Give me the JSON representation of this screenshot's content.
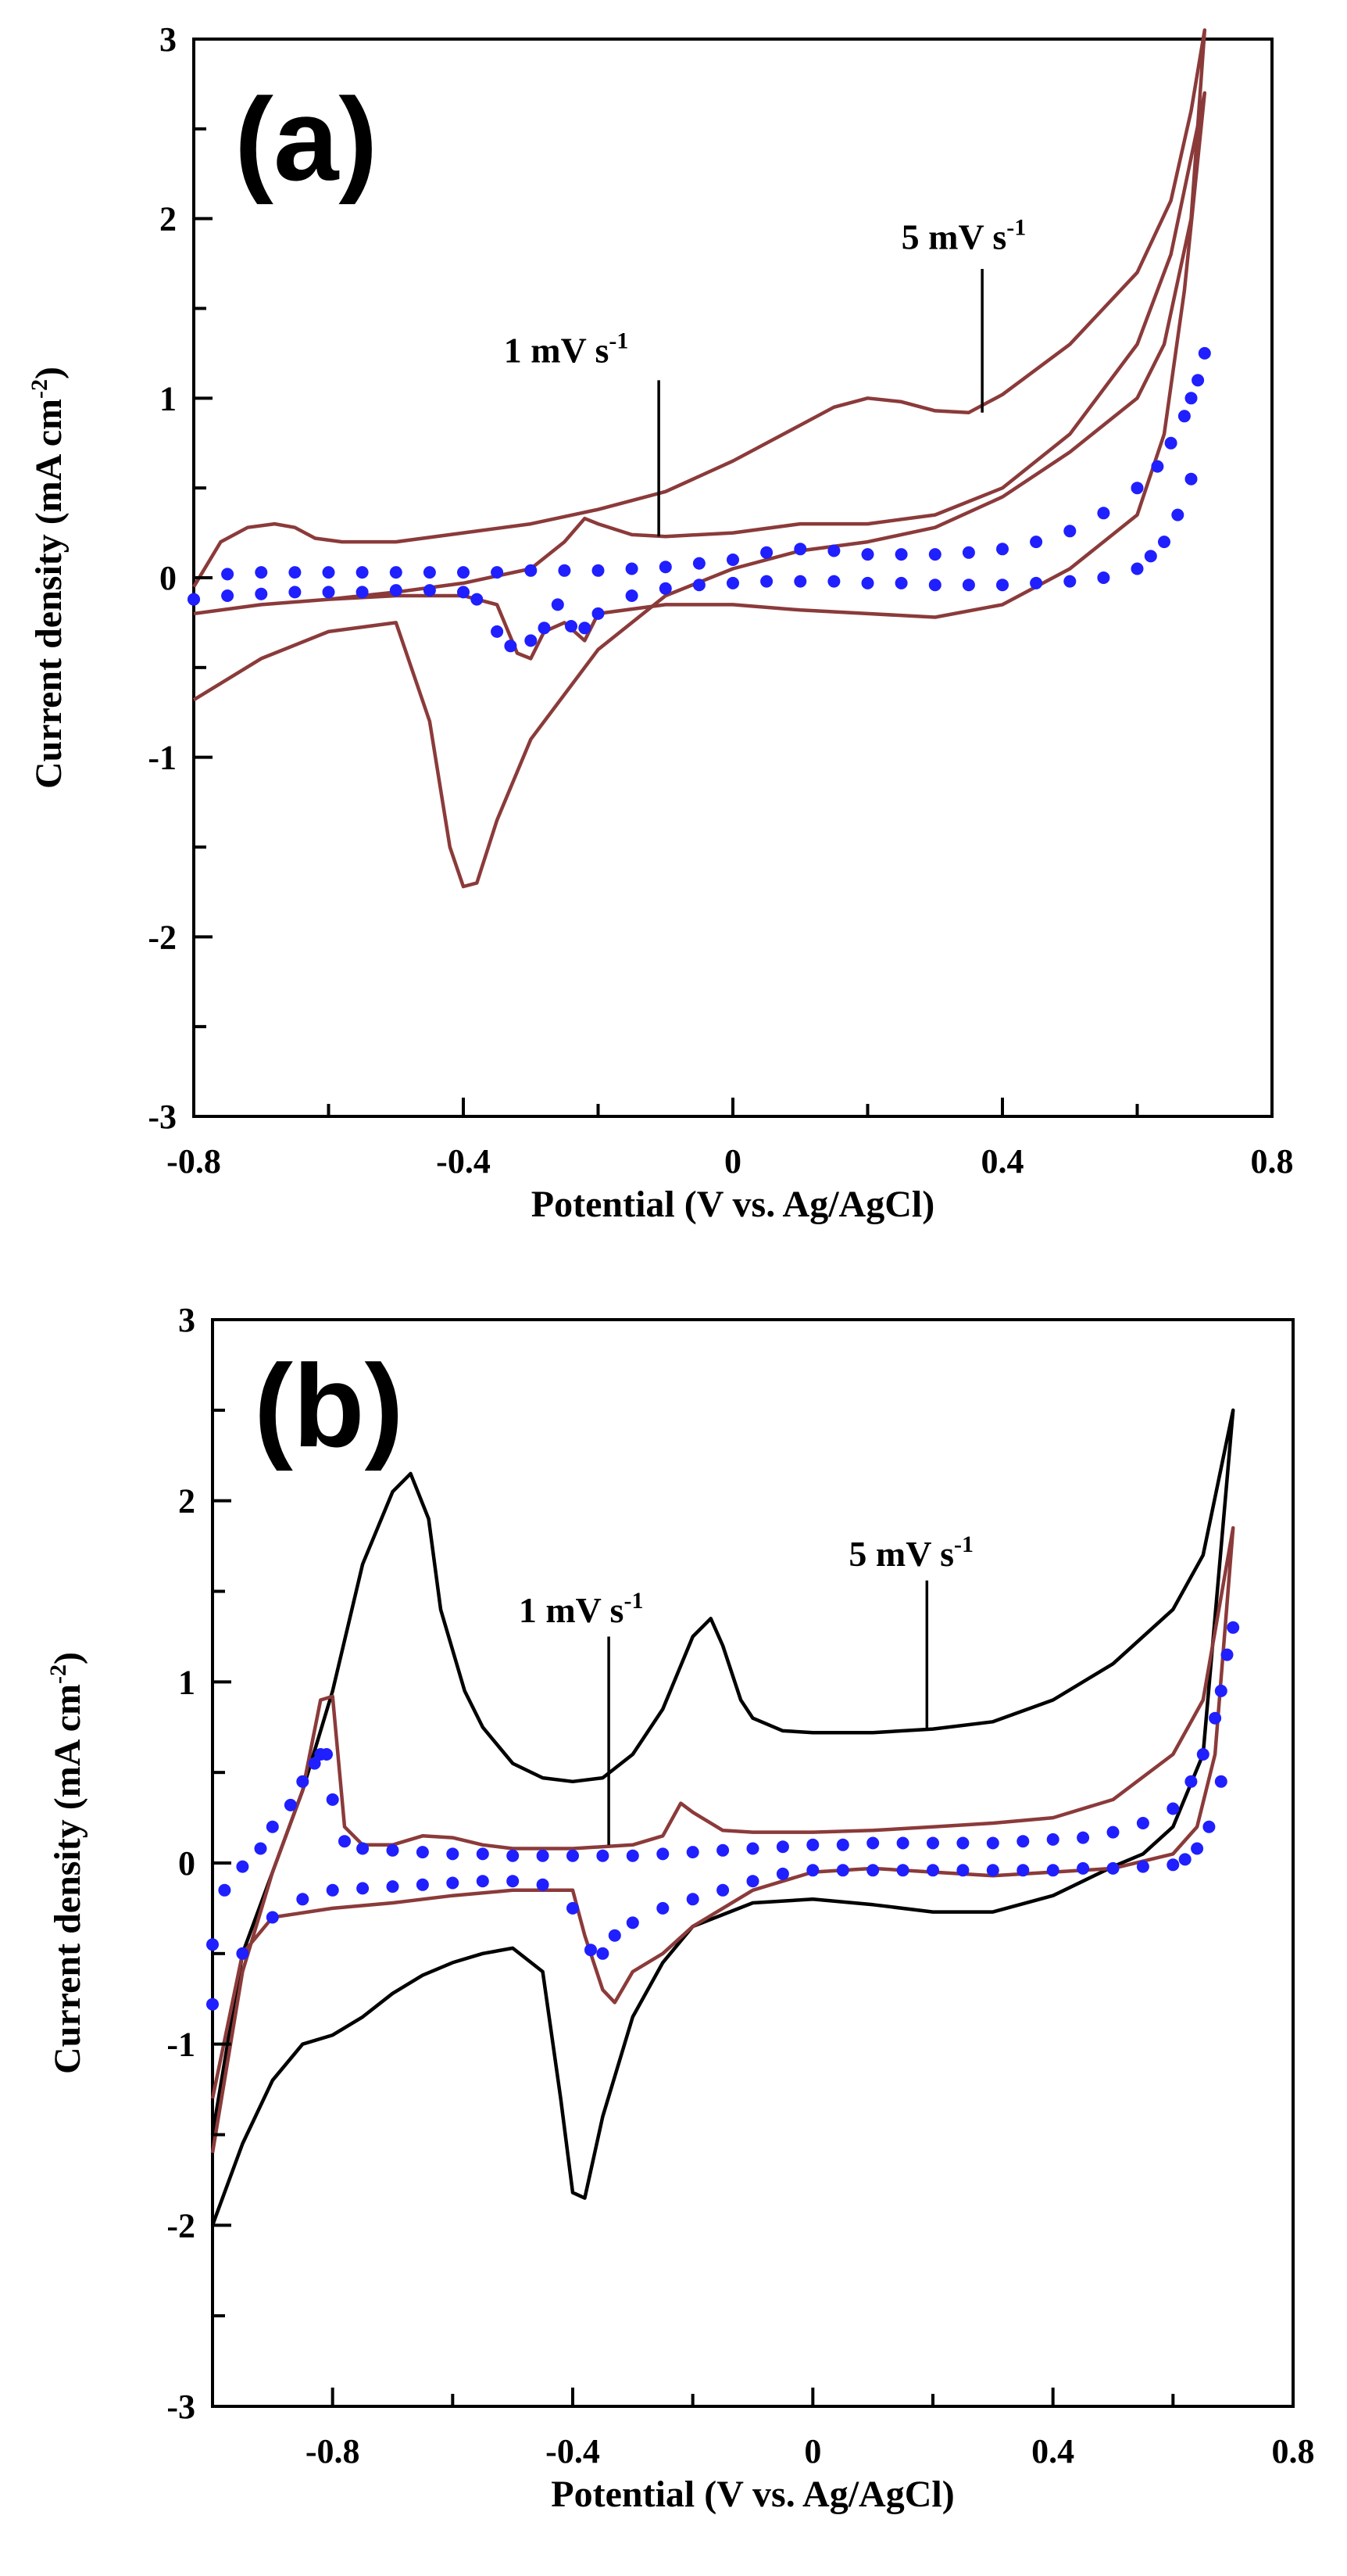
{
  "colors": {
    "brown": "#8b3a3a",
    "black": "#000000",
    "blue": "#1f1fff"
  },
  "chart_data": [
    {
      "type": "line",
      "panel": "(a)",
      "xlabel": "Potential (V vs. Ag/AgCl)",
      "ylabel": "Current density (mA cm",
      "ylabel_sup": "-2",
      "ylabel_tail": ")",
      "xlim": [
        -0.8,
        0.8
      ],
      "ylim": [
        -3,
        3
      ],
      "x_ticks": [
        -0.8,
        -0.4,
        0,
        0.4,
        0.8
      ],
      "x_tick_labels": [
        "-0.8",
        "-0.4",
        "0",
        "0.4",
        "0.8"
      ],
      "y_ticks": [
        -3,
        -2,
        -1,
        0,
        1,
        2,
        3
      ],
      "y_tick_labels": [
        "-3",
        "-2",
        "-1",
        "0",
        "1",
        "2",
        "3"
      ],
      "annotations": [
        {
          "base": "1 mV s",
          "sup": "-1",
          "text_x": -0.34,
          "text_y": 1.2,
          "line_x": -0.11,
          "line_y0": 1.1,
          "line_y1": 0.23
        },
        {
          "base": "5 mV s",
          "sup": "-1",
          "text_x": 0.25,
          "text_y": 1.83,
          "line_x": 0.37,
          "line_y0": 1.72,
          "line_y1": 0.92
        }
      ],
      "series": [
        {
          "name": "5 mV s-1",
          "color": "#8b3a3a",
          "style": "line",
          "x": [
            -0.8,
            -0.76,
            -0.72,
            -0.68,
            -0.65,
            -0.62,
            -0.58,
            -0.5,
            -0.4,
            -0.3,
            -0.2,
            -0.1,
            0.0,
            0.1,
            0.15,
            0.2,
            0.25,
            0.3,
            0.35,
            0.4,
            0.5,
            0.6,
            0.65,
            0.68,
            0.7,
            0.68,
            0.64,
            0.6,
            0.5,
            0.4,
            0.3,
            0.2,
            0.1,
            0.0,
            -0.1,
            -0.2,
            -0.3,
            -0.35,
            -0.38,
            -0.4,
            -0.42,
            -0.45,
            -0.5,
            -0.6,
            -0.7,
            -0.8
          ],
          "y": [
            -0.05,
            0.2,
            0.28,
            0.3,
            0.28,
            0.22,
            0.2,
            0.2,
            0.25,
            0.3,
            0.38,
            0.48,
            0.65,
            0.85,
            0.95,
            1.0,
            0.98,
            0.93,
            0.92,
            1.02,
            1.3,
            1.7,
            2.1,
            2.6,
            3.05,
            2.0,
            1.3,
            1.0,
            0.7,
            0.45,
            0.28,
            0.2,
            0.15,
            0.05,
            -0.1,
            -0.4,
            -0.9,
            -1.35,
            -1.7,
            -1.72,
            -1.5,
            -0.8,
            -0.25,
            -0.3,
            -0.45,
            -0.68
          ]
        },
        {
          "name": "1 mV s-1",
          "color": "#8b3a3a",
          "style": "line",
          "x": [
            -0.8,
            -0.7,
            -0.6,
            -0.5,
            -0.4,
            -0.3,
            -0.25,
            -0.22,
            -0.2,
            -0.15,
            -0.1,
            0.0,
            0.1,
            0.2,
            0.3,
            0.4,
            0.5,
            0.6,
            0.65,
            0.7,
            0.67,
            0.64,
            0.6,
            0.5,
            0.4,
            0.3,
            0.2,
            0.1,
            0.0,
            -0.1,
            -0.2,
            -0.22,
            -0.25,
            -0.28,
            -0.3,
            -0.32,
            -0.35,
            -0.4,
            -0.5,
            -0.6,
            -0.7,
            -0.8
          ],
          "y": [
            -0.2,
            -0.15,
            -0.12,
            -0.08,
            -0.03,
            0.05,
            0.2,
            0.33,
            0.3,
            0.24,
            0.23,
            0.25,
            0.3,
            0.3,
            0.35,
            0.5,
            0.8,
            1.3,
            1.8,
            2.7,
            1.6,
            0.8,
            0.35,
            0.05,
            -0.15,
            -0.22,
            -0.2,
            -0.18,
            -0.15,
            -0.15,
            -0.2,
            -0.35,
            -0.25,
            -0.3,
            -0.45,
            -0.42,
            -0.15,
            -0.1,
            -0.1,
            -0.12,
            -0.15,
            -0.2
          ]
        },
        {
          "name": "dotted",
          "color": "#1f1fff",
          "style": "dots",
          "x": [
            -0.8,
            -0.75,
            -0.7,
            -0.65,
            -0.6,
            -0.55,
            -0.5,
            -0.45,
            -0.4,
            -0.35,
            -0.3,
            -0.25,
            -0.2,
            -0.15,
            -0.1,
            -0.05,
            0.0,
            0.05,
            0.1,
            0.15,
            0.2,
            0.25,
            0.3,
            0.35,
            0.4,
            0.45,
            0.5,
            0.55,
            0.6,
            0.63,
            0.65,
            0.67,
            0.68,
            0.69,
            0.7,
            0.68,
            0.66,
            0.64,
            0.62,
            0.6,
            0.55,
            0.5,
            0.45,
            0.4,
            0.35,
            0.3,
            0.25,
            0.2,
            0.15,
            0.1,
            0.05,
            0.0,
            -0.05,
            -0.1,
            -0.15,
            -0.2,
            -0.22,
            -0.24,
            -0.26,
            -0.28,
            -0.3,
            -0.33,
            -0.35,
            -0.38,
            -0.4,
            -0.45,
            -0.5,
            -0.55,
            -0.6,
            -0.65,
            -0.7,
            -0.75,
            -0.8
          ],
          "y": [
            -0.12,
            0.02,
            0.03,
            0.03,
            0.03,
            0.03,
            0.03,
            0.03,
            0.03,
            0.03,
            0.04,
            0.04,
            0.04,
            0.05,
            0.06,
            0.08,
            0.1,
            0.14,
            0.16,
            0.15,
            0.13,
            0.13,
            0.13,
            0.14,
            0.16,
            0.2,
            0.26,
            0.36,
            0.5,
            0.62,
            0.75,
            0.9,
            1.0,
            1.1,
            1.25,
            0.55,
            0.35,
            0.2,
            0.12,
            0.05,
            0.0,
            -0.02,
            -0.03,
            -0.04,
            -0.04,
            -0.04,
            -0.03,
            -0.03,
            -0.02,
            -0.02,
            -0.02,
            -0.03,
            -0.04,
            -0.06,
            -0.1,
            -0.2,
            -0.28,
            -0.27,
            -0.15,
            -0.28,
            -0.35,
            -0.38,
            -0.3,
            -0.12,
            -0.08,
            -0.07,
            -0.07,
            -0.08,
            -0.08,
            -0.08,
            -0.09,
            -0.1,
            -0.12
          ]
        }
      ]
    },
    {
      "type": "line",
      "panel": "(b)",
      "xlabel": "Potential (V vs. Ag/AgCl)",
      "ylabel": "Current density (mA cm",
      "ylabel_sup": "-2",
      "ylabel_tail": ")",
      "xlim": [
        -1.0,
        0.8
      ],
      "ylim": [
        -3,
        3
      ],
      "x_ticks": [
        -0.8,
        -0.4,
        0,
        0.4,
        0.8
      ],
      "x_tick_labels": [
        "-0.8",
        "-0.4",
        "0",
        "0.4",
        "0.8"
      ],
      "y_ticks": [
        -3,
        -2,
        -1,
        0,
        1,
        2,
        3
      ],
      "y_tick_labels": [
        "-3",
        "-2",
        "-1",
        "0",
        "1",
        "2",
        "3"
      ],
      "annotations": [
        {
          "base": "1 mV s",
          "sup": "-1",
          "text_x": -0.49,
          "text_y": 1.33,
          "line_x": -0.34,
          "line_y0": 1.25,
          "line_y1": 0.1
        },
        {
          "base": "5 mV s",
          "sup": "-1",
          "text_x": 0.06,
          "text_y": 1.64,
          "line_x": 0.19,
          "line_y0": 1.56,
          "line_y1": 0.73
        }
      ],
      "series": [
        {
          "name": "5 mV s-1",
          "color": "#000000",
          "style": "line",
          "x": [
            -1.0,
            -0.95,
            -0.9,
            -0.85,
            -0.8,
            -0.75,
            -0.7,
            -0.67,
            -0.64,
            -0.62,
            -0.58,
            -0.55,
            -0.5,
            -0.45,
            -0.4,
            -0.35,
            -0.3,
            -0.25,
            -0.2,
            -0.17,
            -0.15,
            -0.12,
            -0.1,
            -0.05,
            0.0,
            0.1,
            0.2,
            0.3,
            0.4,
            0.5,
            0.6,
            0.65,
            0.7,
            0.65,
            0.6,
            0.55,
            0.5,
            0.45,
            0.4,
            0.3,
            0.2,
            0.1,
            0.0,
            -0.1,
            -0.2,
            -0.25,
            -0.3,
            -0.35,
            -0.38,
            -0.4,
            -0.42,
            -0.45,
            -0.5,
            -0.55,
            -0.6,
            -0.65,
            -0.7,
            -0.75,
            -0.8,
            -0.85,
            -0.9,
            -0.95,
            -1.0
          ],
          "y": [
            -1.5,
            -0.5,
            -0.05,
            0.4,
            0.95,
            1.65,
            2.05,
            2.15,
            1.9,
            1.4,
            0.95,
            0.75,
            0.55,
            0.47,
            0.45,
            0.47,
            0.6,
            0.85,
            1.25,
            1.35,
            1.2,
            0.9,
            0.8,
            0.73,
            0.72,
            0.72,
            0.74,
            0.78,
            0.9,
            1.1,
            1.4,
            1.7,
            2.5,
            0.6,
            0.2,
            0.05,
            -0.02,
            -0.1,
            -0.18,
            -0.27,
            -0.27,
            -0.23,
            -0.2,
            -0.22,
            -0.35,
            -0.55,
            -0.85,
            -1.4,
            -1.85,
            -1.82,
            -1.3,
            -0.6,
            -0.47,
            -0.5,
            -0.55,
            -0.62,
            -0.72,
            -0.85,
            -0.95,
            -1.0,
            -1.2,
            -1.55,
            -2.0
          ]
        },
        {
          "name": "1 mV s-1",
          "color": "#8b3a3a",
          "style": "line",
          "x": [
            -1.0,
            -0.95,
            -0.9,
            -0.85,
            -0.82,
            -0.8,
            -0.78,
            -0.75,
            -0.7,
            -0.65,
            -0.6,
            -0.55,
            -0.5,
            -0.4,
            -0.3,
            -0.25,
            -0.22,
            -0.2,
            -0.15,
            -0.1,
            0.0,
            0.1,
            0.2,
            0.3,
            0.4,
            0.5,
            0.6,
            0.65,
            0.7,
            0.67,
            0.64,
            0.6,
            0.5,
            0.4,
            0.3,
            0.2,
            0.1,
            0.0,
            -0.1,
            -0.2,
            -0.25,
            -0.3,
            -0.33,
            -0.35,
            -0.38,
            -0.4,
            -0.5,
            -0.6,
            -0.7,
            -0.8,
            -0.9,
            -0.95,
            -1.0
          ],
          "y": [
            -1.6,
            -0.6,
            -0.05,
            0.4,
            0.9,
            0.92,
            0.2,
            0.1,
            0.1,
            0.15,
            0.14,
            0.1,
            0.08,
            0.08,
            0.1,
            0.15,
            0.33,
            0.28,
            0.18,
            0.17,
            0.17,
            0.18,
            0.2,
            0.22,
            0.25,
            0.35,
            0.6,
            0.9,
            1.85,
            0.6,
            0.2,
            0.05,
            -0.03,
            -0.05,
            -0.07,
            -0.05,
            -0.03,
            -0.05,
            -0.15,
            -0.35,
            -0.5,
            -0.6,
            -0.77,
            -0.7,
            -0.4,
            -0.15,
            -0.15,
            -0.18,
            -0.22,
            -0.25,
            -0.3,
            -0.5,
            -1.3
          ]
        },
        {
          "name": "dotted",
          "color": "#1f1fff",
          "style": "dots",
          "x": [
            -1.0,
            -0.98,
            -0.95,
            -0.92,
            -0.9,
            -0.87,
            -0.85,
            -0.83,
            -0.82,
            -0.81,
            -0.8,
            -0.78,
            -0.75,
            -0.7,
            -0.65,
            -0.6,
            -0.55,
            -0.5,
            -0.45,
            -0.4,
            -0.35,
            -0.3,
            -0.25,
            -0.2,
            -0.15,
            -0.1,
            -0.05,
            0.0,
            0.05,
            0.1,
            0.15,
            0.2,
            0.25,
            0.3,
            0.35,
            0.4,
            0.45,
            0.5,
            0.55,
            0.6,
            0.63,
            0.65,
            0.67,
            0.68,
            0.69,
            0.7,
            0.68,
            0.66,
            0.64,
            0.62,
            0.6,
            0.55,
            0.5,
            0.45,
            0.4,
            0.35,
            0.3,
            0.25,
            0.2,
            0.15,
            0.1,
            0.05,
            0.0,
            -0.05,
            -0.1,
            -0.15,
            -0.2,
            -0.25,
            -0.3,
            -0.33,
            -0.35,
            -0.37,
            -0.4,
            -0.45,
            -0.5,
            -0.55,
            -0.6,
            -0.65,
            -0.7,
            -0.75,
            -0.8,
            -0.85,
            -0.9,
            -0.95,
            -1.0
          ],
          "y": [
            -0.45,
            -0.15,
            -0.02,
            0.08,
            0.2,
            0.32,
            0.45,
            0.55,
            0.6,
            0.6,
            0.35,
            0.12,
            0.08,
            0.07,
            0.06,
            0.05,
            0.05,
            0.04,
            0.04,
            0.04,
            0.04,
            0.04,
            0.05,
            0.06,
            0.07,
            0.08,
            0.09,
            0.1,
            0.1,
            0.11,
            0.11,
            0.11,
            0.11,
            0.11,
            0.12,
            0.13,
            0.14,
            0.17,
            0.22,
            0.3,
            0.45,
            0.6,
            0.8,
            0.95,
            1.15,
            1.3,
            0.45,
            0.2,
            0.08,
            0.02,
            -0.01,
            -0.02,
            -0.03,
            -0.03,
            -0.04,
            -0.04,
            -0.04,
            -0.04,
            -0.04,
            -0.04,
            -0.04,
            -0.04,
            -0.04,
            -0.06,
            -0.1,
            -0.15,
            -0.2,
            -0.25,
            -0.33,
            -0.4,
            -0.5,
            -0.48,
            -0.25,
            -0.12,
            -0.1,
            -0.1,
            -0.11,
            -0.12,
            -0.13,
            -0.14,
            -0.15,
            -0.2,
            -0.3,
            -0.5,
            -0.78
          ]
        }
      ]
    }
  ]
}
